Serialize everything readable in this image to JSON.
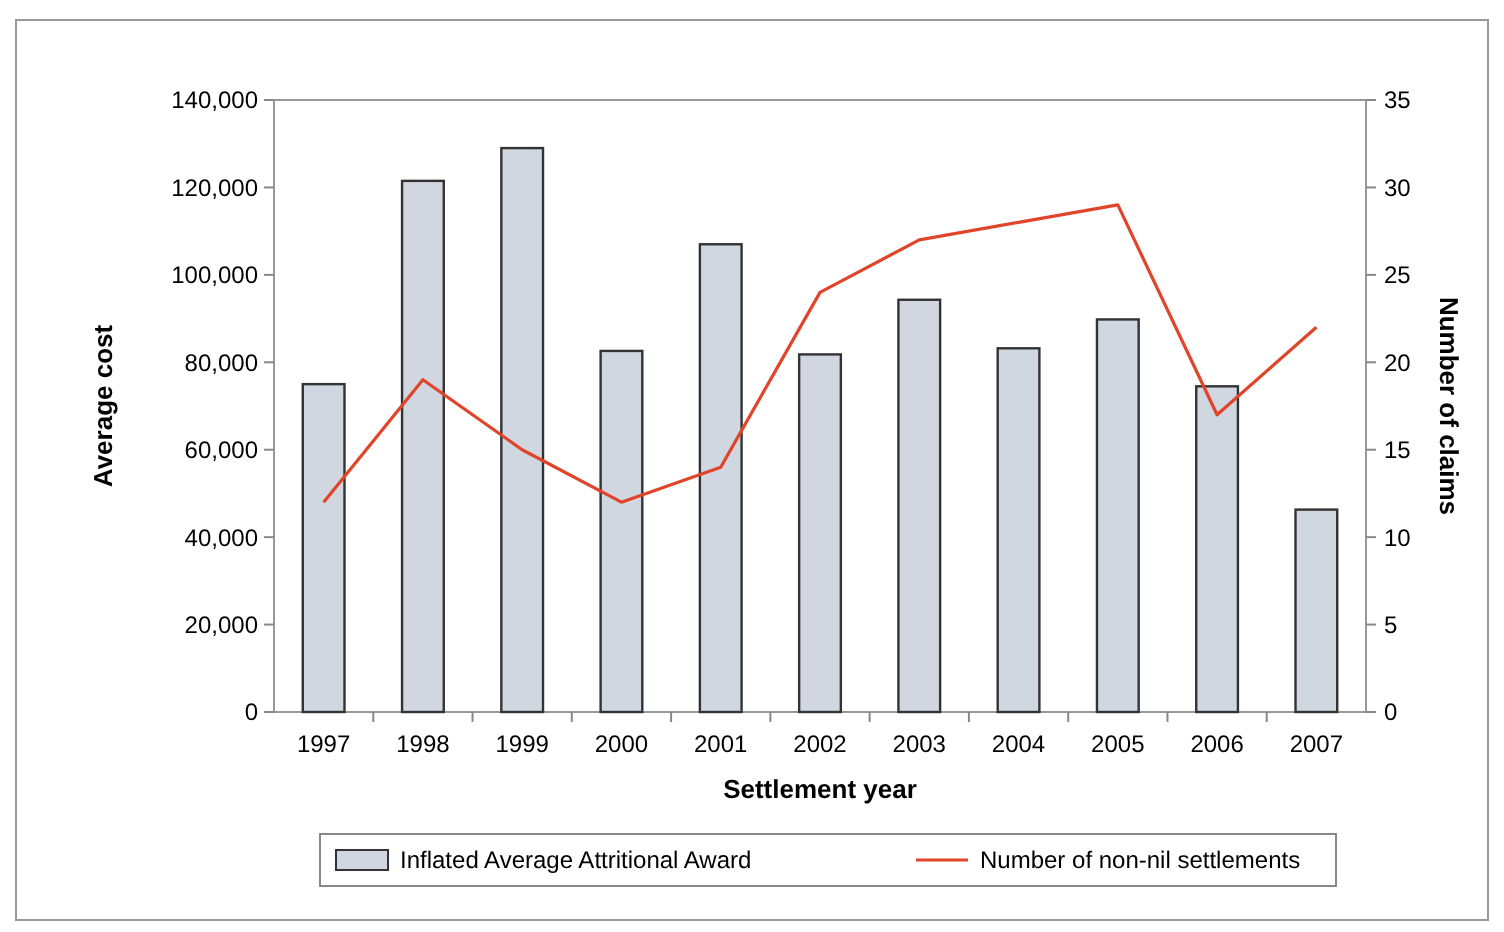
{
  "chart_data": {
    "type": "bar",
    "xlabel": "Settlement year",
    "ylabel": "Average cost",
    "y2label": "Number of claims",
    "categories": [
      "1997",
      "1998",
      "1999",
      "2000",
      "2001",
      "2002",
      "2003",
      "2004",
      "2005",
      "2006",
      "2007"
    ],
    "series": [
      {
        "name": "Inflated Average Attritional Award",
        "color": "#d0d7e1",
        "values": [
          75000,
          121500,
          129000,
          82600,
          107000,
          81800,
          94300,
          83200,
          89800,
          74500,
          46300
        ]
      },
      {
        "name": "Number of non-nil settlements",
        "type": "line",
        "axis": "y2",
        "color": "#e0452a",
        "values": [
          12,
          19,
          15,
          12,
          14,
          24,
          27,
          28,
          29,
          17,
          22
        ]
      }
    ],
    "ylim": [
      0,
      140000
    ],
    "yticks": [
      {
        "value": 0,
        "label": "0"
      },
      {
        "value": 20000,
        "label": "20,000"
      },
      {
        "value": 40000,
        "label": "40,000"
      },
      {
        "value": 60000,
        "label": "60,000"
      },
      {
        "value": 80000,
        "label": "80,000"
      },
      {
        "value": 100000,
        "label": "100,000"
      },
      {
        "value": 120000,
        "label": "120,000"
      },
      {
        "value": 140000,
        "label": "140,000"
      }
    ],
    "y2lim": [
      0,
      35
    ],
    "y2ticks": [
      0,
      5,
      10,
      15,
      20,
      25,
      30,
      35
    ],
    "legend": "bottom",
    "marker": "none",
    "line_style": "solid"
  }
}
